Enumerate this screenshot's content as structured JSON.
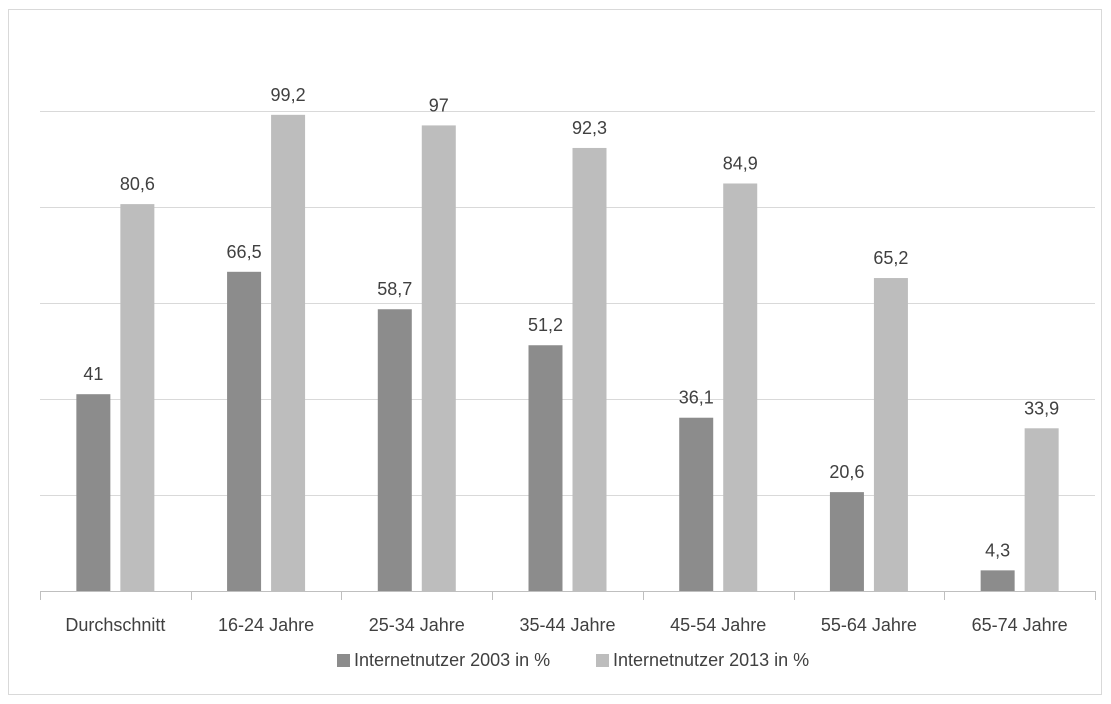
{
  "chart_data": {
    "type": "bar",
    "title": "",
    "xlabel": "",
    "ylabel": "",
    "ylim": [
      0,
      120
    ],
    "grid": true,
    "legend_position": "bottom",
    "categories": [
      "Durchschnitt",
      "16-24 Jahre",
      "25-34 Jahre",
      "35-44 Jahre",
      "45-54 Jahre",
      "55-64 Jahre",
      "65-74 Jahre"
    ],
    "series": [
      {
        "name": "Internetnutzer 2003 in %",
        "color": "#8c8c8c",
        "values": [
          41,
          66.5,
          58.7,
          51.2,
          36.1,
          20.6,
          4.3
        ],
        "labels": [
          "41",
          "66,5",
          "58,7",
          "51,2",
          "36,1",
          "20,6",
          "4,3"
        ]
      },
      {
        "name": "Internetnutzer 2013 in %",
        "color": "#bdbdbd",
        "values": [
          80.6,
          99.2,
          97,
          92.3,
          84.9,
          65.2,
          33.9
        ],
        "labels": [
          "80,6",
          "99,2",
          "97",
          "92,3",
          "84,9",
          "65,2",
          "33,9"
        ]
      }
    ]
  }
}
